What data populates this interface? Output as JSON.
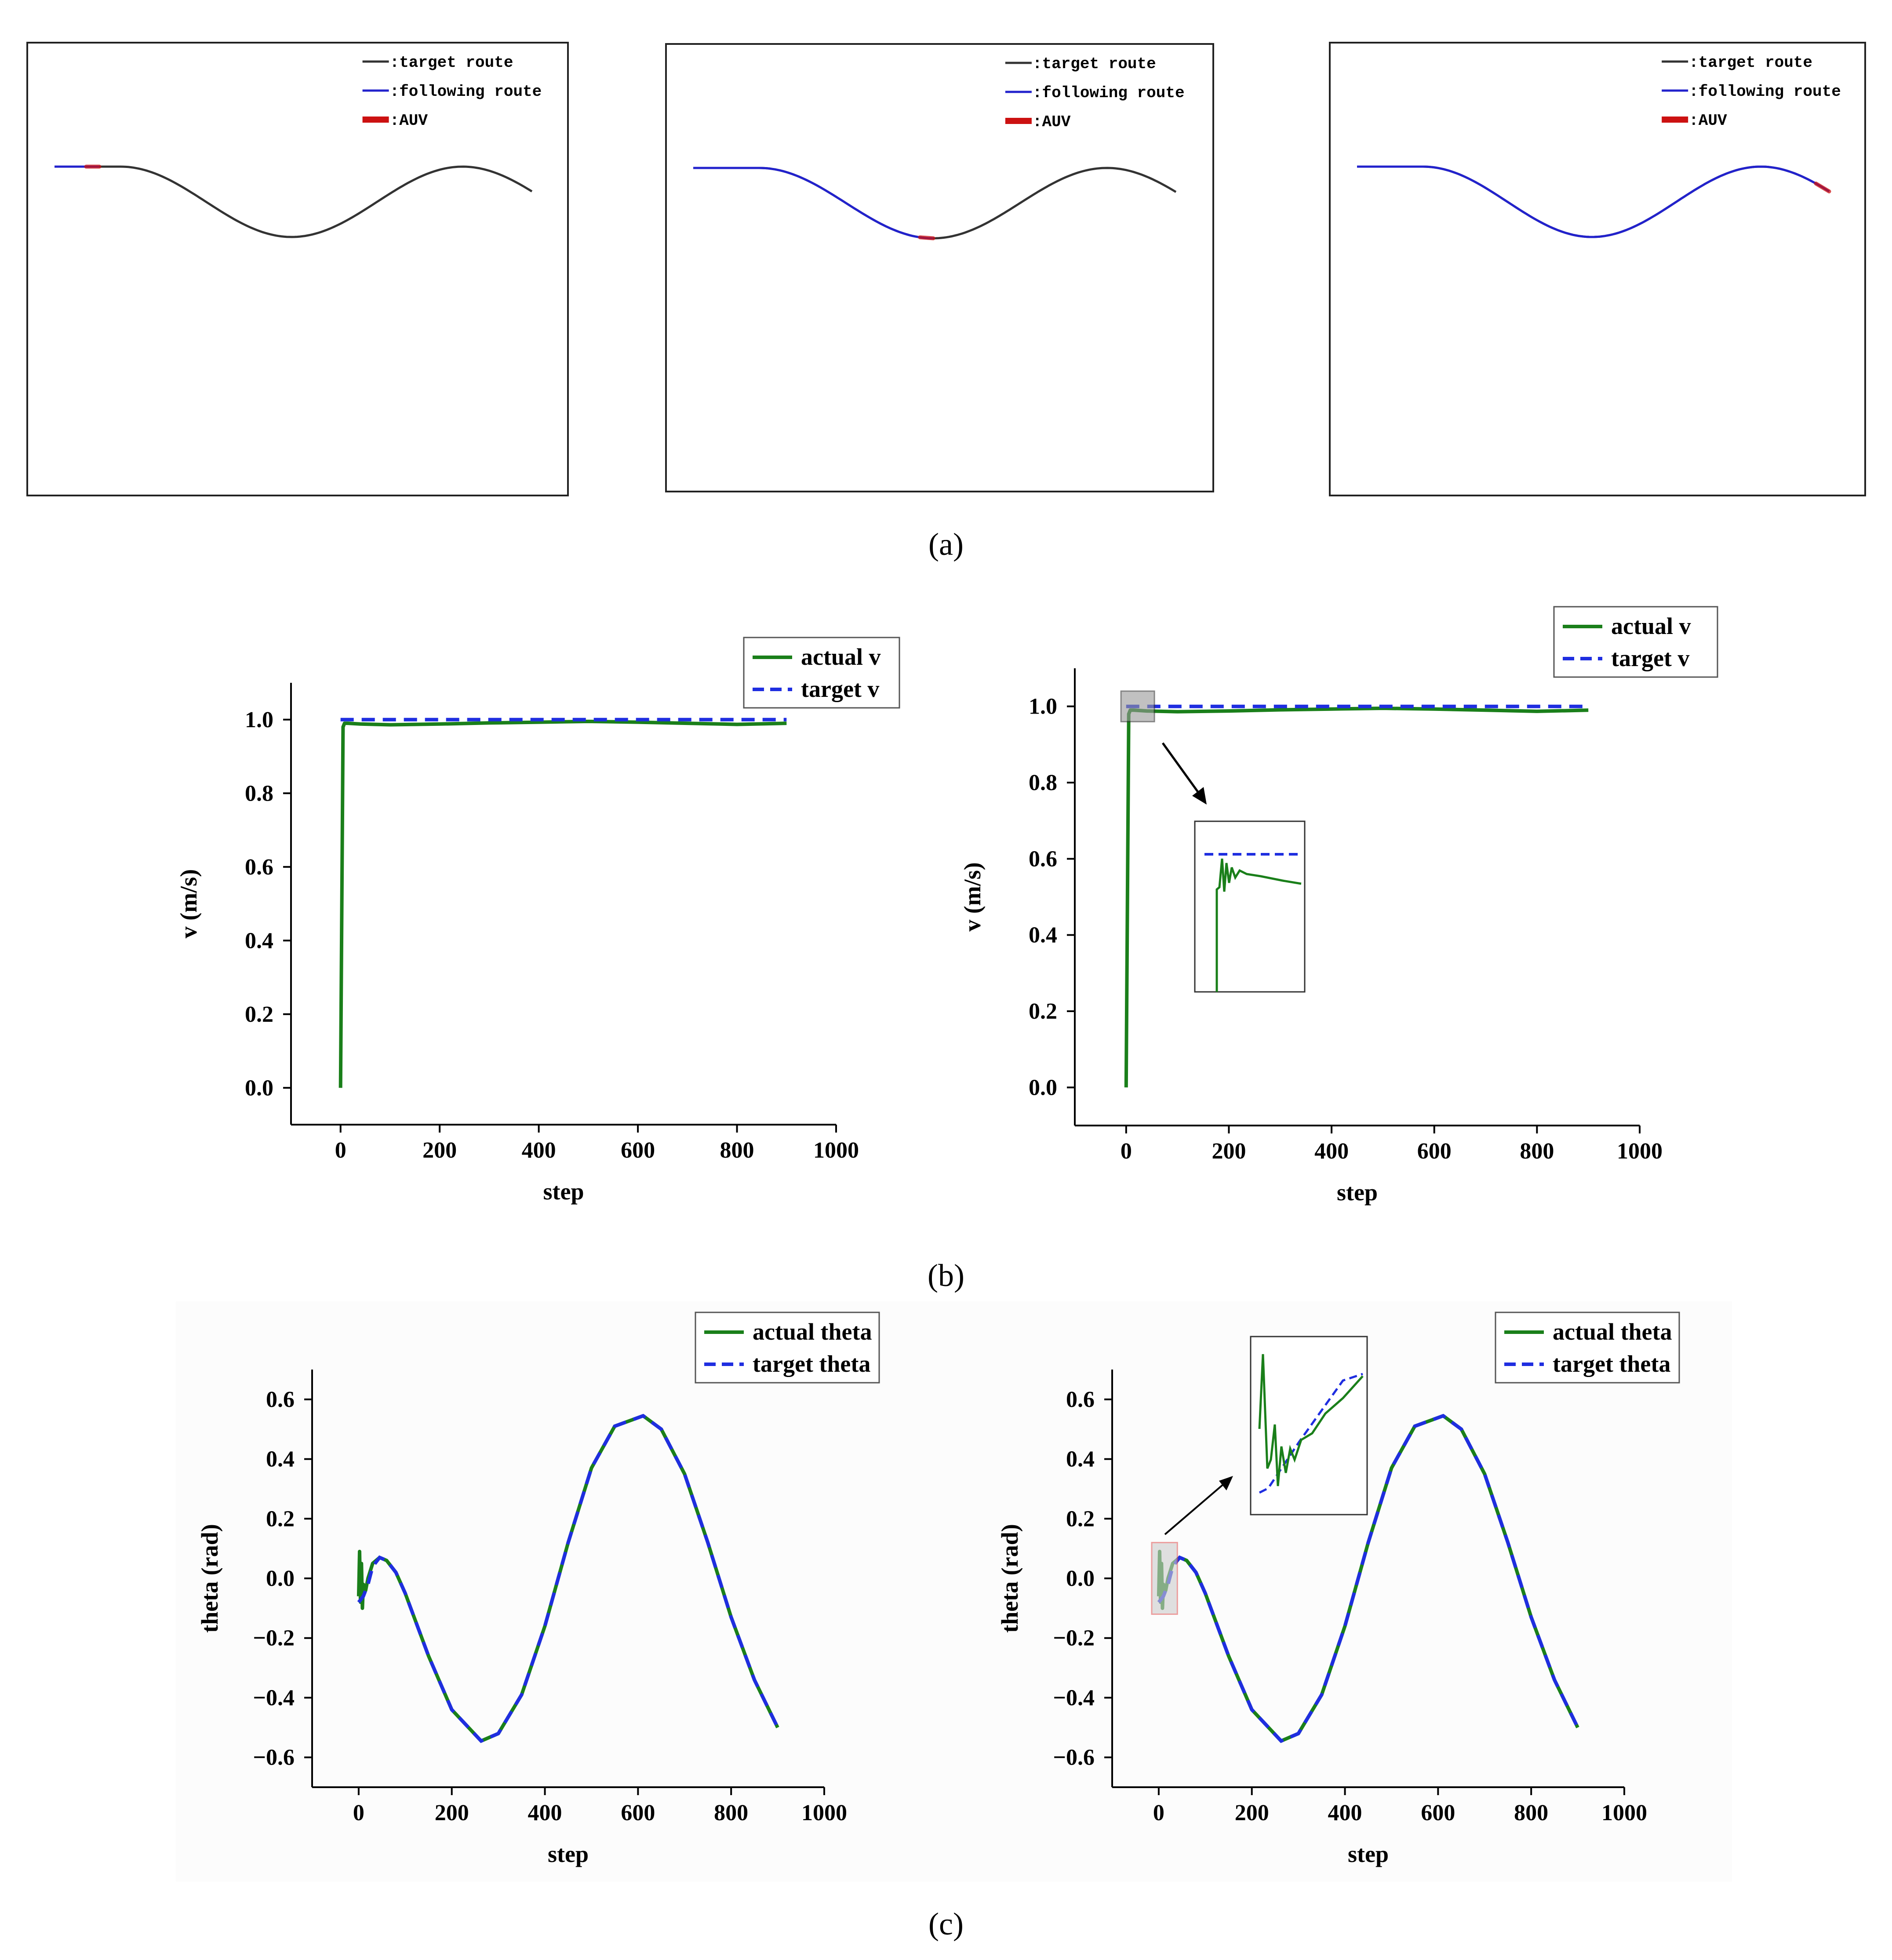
{
  "panel_labels": {
    "a": "(a)",
    "b": "(b)",
    "c": "(c)"
  },
  "colors": {
    "target_route": "#333333",
    "following_route": "#2222cc",
    "auv": "#cc1111",
    "actual": "#1a7f1a",
    "target": "#1f2ee0"
  },
  "route_legend": {
    "target_route": ":target route",
    "following_route": ":following route",
    "auv": ":AUV"
  },
  "chart_data": [
    {
      "id": "route-1",
      "type": "line",
      "panel": "(a)",
      "title": "",
      "legend": [
        ":target route",
        ":following route",
        ":AUV"
      ],
      "progress": 0.1
    },
    {
      "id": "route-2",
      "type": "line",
      "panel": "(a)",
      "title": "",
      "legend": [
        ":target route",
        ":following route",
        ":AUV"
      ],
      "progress": 0.5
    },
    {
      "id": "route-3",
      "type": "line",
      "panel": "(a)",
      "title": "",
      "legend": [
        ":target route",
        ":following route",
        ":AUV"
      ],
      "progress": 1.0
    },
    {
      "id": "velocity-1",
      "type": "line",
      "panel": "(b)",
      "xlabel": "step",
      "ylabel": "v (m/s)",
      "xlim": [
        -100,
        1000
      ],
      "ylim": [
        -0.1,
        1.1
      ],
      "xticks": [
        "0",
        "200",
        "400",
        "600",
        "800",
        "1000"
      ],
      "yticks": [
        "0.0",
        "0.2",
        "0.4",
        "0.6",
        "0.8",
        "1.0"
      ],
      "legend_position": "top-right",
      "series": [
        {
          "name": "actual v",
          "style": "solid",
          "x": [
            0,
            5,
            8,
            15,
            40,
            100,
            200,
            300,
            400,
            500,
            600,
            700,
            800,
            900
          ],
          "y": [
            0.0,
            0.98,
            0.99,
            0.99,
            0.988,
            0.986,
            0.988,
            0.991,
            0.993,
            0.995,
            0.993,
            0.99,
            0.987,
            0.99
          ]
        },
        {
          "name": "target v",
          "style": "dashed",
          "x": [
            0,
            900
          ],
          "y": [
            1.0,
            1.0
          ]
        }
      ]
    },
    {
      "id": "velocity-2",
      "type": "line",
      "panel": "(b)",
      "xlabel": "step",
      "ylabel": "v (m/s)",
      "xlim": [
        -100,
        1000
      ],
      "ylim": [
        -0.1,
        1.1
      ],
      "xticks": [
        "0",
        "200",
        "400",
        "600",
        "800",
        "1000"
      ],
      "yticks": [
        "0.0",
        "0.2",
        "0.4",
        "0.6",
        "0.8",
        "1.0"
      ],
      "legend_position": "top-right",
      "inset": "zoom of steps 0-50",
      "series": [
        {
          "name": "actual v",
          "style": "solid",
          "x": [
            0,
            5,
            8,
            15,
            40,
            100,
            200,
            300,
            400,
            500,
            600,
            700,
            800,
            900
          ],
          "y": [
            0.0,
            0.98,
            0.99,
            0.99,
            0.988,
            0.986,
            0.988,
            0.991,
            0.993,
            0.995,
            0.993,
            0.99,
            0.987,
            0.99
          ]
        },
        {
          "name": "target v",
          "style": "dashed",
          "x": [
            0,
            900
          ],
          "y": [
            1.0,
            1.0
          ]
        }
      ]
    },
    {
      "id": "theta-1",
      "type": "line",
      "panel": "(c)",
      "xlabel": "step",
      "ylabel": "theta (rad)",
      "xlim": [
        -100,
        1000
      ],
      "ylim": [
        -0.7,
        0.7
      ],
      "xticks": [
        "0",
        "200",
        "400",
        "600",
        "800",
        "1000"
      ],
      "yticks": [
        "-0.6",
        "-0.4",
        "-0.2",
        "0.0",
        "0.2",
        "0.4",
        "0.6"
      ],
      "legend_position": "top-right",
      "series": [
        {
          "name": "actual theta",
          "style": "solid",
          "x": [
            0,
            2,
            4,
            6,
            8,
            10,
            15,
            20,
            30,
            45,
            60,
            80,
            100,
            150,
            200,
            263,
            300,
            350,
            400,
            450,
            500,
            550,
            611,
            650,
            700,
            750,
            800,
            850,
            900
          ],
          "y": [
            -0.06,
            0.09,
            -0.08,
            0.05,
            -0.1,
            -0.02,
            -0.04,
            0.0,
            0.05,
            0.07,
            0.06,
            0.02,
            -0.05,
            -0.26,
            -0.44,
            -0.545,
            -0.52,
            -0.39,
            -0.16,
            0.12,
            0.37,
            0.51,
            0.545,
            0.5,
            0.35,
            0.12,
            -0.13,
            -0.34,
            -0.5
          ]
        },
        {
          "name": "target theta",
          "style": "dashed",
          "x": [
            0,
            10,
            20,
            30,
            45,
            60,
            80,
            100,
            150,
            200,
            263,
            300,
            350,
            400,
            450,
            500,
            550,
            611,
            650,
            700,
            750,
            800,
            850,
            900
          ],
          "y": [
            -0.08,
            -0.06,
            -0.02,
            0.04,
            0.07,
            0.06,
            0.02,
            -0.05,
            -0.26,
            -0.44,
            -0.545,
            -0.52,
            -0.39,
            -0.16,
            0.12,
            0.37,
            0.51,
            0.545,
            0.5,
            0.35,
            0.12,
            -0.13,
            -0.34,
            -0.5
          ]
        }
      ]
    },
    {
      "id": "theta-2",
      "type": "line",
      "panel": "(c)",
      "xlabel": "step",
      "ylabel": "theta (rad)",
      "xlim": [
        -100,
        1000
      ],
      "ylim": [
        -0.7,
        0.7
      ],
      "xticks": [
        "0",
        "200",
        "400",
        "600",
        "800",
        "1000"
      ],
      "yticks": [
        "-0.6",
        "-0.4",
        "-0.2",
        "0.0",
        "0.2",
        "0.4",
        "0.6"
      ],
      "legend_position": "top-right",
      "inset": "zoom of steps 0-30",
      "series": [
        {
          "name": "actual theta",
          "style": "solid",
          "x": [
            0,
            2,
            4,
            6,
            8,
            10,
            15,
            20,
            30,
            45,
            60,
            80,
            100,
            150,
            200,
            263,
            300,
            350,
            400,
            450,
            500,
            550,
            611,
            650,
            700,
            750,
            800,
            850,
            900
          ],
          "y": [
            -0.06,
            0.09,
            -0.08,
            0.05,
            -0.1,
            -0.02,
            -0.04,
            0.0,
            0.05,
            0.07,
            0.06,
            0.02,
            -0.05,
            -0.26,
            -0.44,
            -0.545,
            -0.52,
            -0.39,
            -0.16,
            0.12,
            0.37,
            0.51,
            0.545,
            0.5,
            0.35,
            0.12,
            -0.13,
            -0.34,
            -0.5
          ]
        },
        {
          "name": "target theta",
          "style": "dashed",
          "x": [
            0,
            10,
            20,
            30,
            45,
            60,
            80,
            100,
            150,
            200,
            263,
            300,
            350,
            400,
            450,
            500,
            550,
            611,
            650,
            700,
            750,
            800,
            850,
            900
          ],
          "y": [
            -0.08,
            -0.06,
            -0.02,
            0.04,
            0.07,
            0.06,
            0.02,
            -0.05,
            -0.26,
            -0.44,
            -0.545,
            -0.52,
            -0.39,
            -0.16,
            0.12,
            0.37,
            0.51,
            0.545,
            0.5,
            0.35,
            0.12,
            -0.13,
            -0.34,
            -0.5
          ]
        }
      ]
    }
  ]
}
